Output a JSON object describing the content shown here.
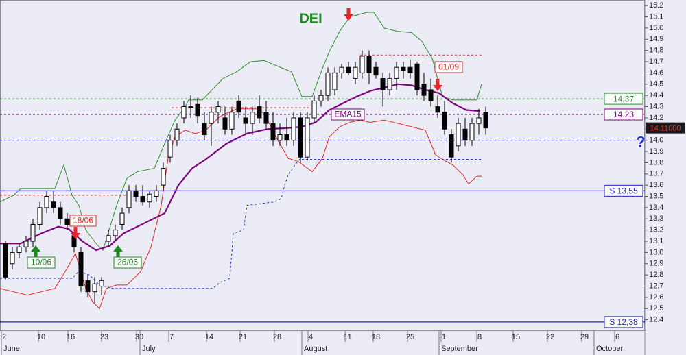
{
  "chart_data": {
    "type": "candlestick",
    "title": "DEI",
    "xlim": [
      -0.8,
      93.2
    ],
    "ylim": [
      12.3,
      15.25
    ],
    "yticks": [
      12.4,
      12.5,
      12.6,
      12.7,
      12.8,
      12.9,
      {
        "value": 13,
        "label": "13.0"
      },
      13.1,
      13.2,
      13.3,
      13.4,
      13.5,
      13.6,
      13.7,
      13.8,
      13.9,
      {
        "value": 14,
        "label": "14.0"
      },
      14.1,
      14.2,
      14.3,
      14.4,
      14.5,
      14.6,
      14.7,
      14.8,
      14.9,
      {
        "value": 15,
        "label": "15.0"
      },
      15.1,
      15.2
    ],
    "xticks": [
      {
        "value": -0.2,
        "label": "2"
      },
      {
        "value": 5.2,
        "label": "10"
      },
      {
        "value": 9.5,
        "label": "16"
      },
      {
        "value": 14.4,
        "label": "23"
      },
      {
        "value": 19.5,
        "label": "30"
      },
      {
        "value": 24.2,
        "label": "7"
      },
      {
        "value": 29.7,
        "label": "14"
      },
      {
        "value": 34.6,
        "label": "21"
      },
      {
        "value": 39.6,
        "label": "28"
      },
      {
        "value": 44.5,
        "label": "4"
      },
      {
        "value": 49.9,
        "label": "11"
      },
      {
        "value": 54.0,
        "label": "18"
      },
      {
        "value": 59.0,
        "label": "25"
      },
      {
        "value": 63.9,
        "label": "1"
      },
      {
        "value": 69.1,
        "label": "8"
      },
      {
        "value": 74.4,
        "label": "15"
      },
      {
        "value": 79.4,
        "label": "22"
      },
      {
        "value": 84.4,
        "label": "29"
      },
      {
        "value": 89.2,
        "label": "6"
      }
    ],
    "months": [
      {
        "value": -0.6,
        "label": "June"
      },
      {
        "value": 19.6,
        "label": "July"
      },
      {
        "value": 43.2,
        "label": "August"
      },
      {
        "value": 63.2,
        "label": "September"
      },
      {
        "value": 85.8,
        "label": "October"
      }
    ],
    "candles": {
      "x": [
        0,
        1,
        2,
        3,
        4,
        5,
        6,
        7,
        8,
        9,
        10,
        11,
        12,
        13,
        14,
        15,
        16,
        17,
        18,
        19,
        20,
        21,
        22,
        23,
        24,
        25,
        26,
        27,
        28,
        29,
        30,
        31,
        32,
        33,
        34,
        35,
        36,
        37,
        38,
        39,
        40,
        41,
        42,
        43,
        44,
        45,
        46,
        47,
        48,
        49,
        50,
        51,
        52,
        53,
        54,
        55,
        56,
        57,
        58,
        59,
        60,
        61,
        62,
        63,
        64,
        65,
        66,
        67,
        68,
        69,
        70
      ],
      "open": [
        13.08,
        12.9,
        13.0,
        13.05,
        13.1,
        13.25,
        13.4,
        13.45,
        13.4,
        13.3,
        13.15,
        13.0,
        12.75,
        12.65,
        12.7,
        13.1,
        13.15,
        13.25,
        13.4,
        13.55,
        13.5,
        13.45,
        13.5,
        13.6,
        13.85,
        14.0,
        14.2,
        14.3,
        14.32,
        14.15,
        14.15,
        14.25,
        14.2,
        14.1,
        14.35,
        14.2,
        14.15,
        14.3,
        14.25,
        14.15,
        14.0,
        14.05,
        14.0,
        14.2,
        13.85,
        14.2,
        14.35,
        14.4,
        14.45,
        14.6,
        14.65,
        14.55,
        14.6,
        14.75,
        14.65,
        14.55,
        14.45,
        14.55,
        14.65,
        14.65,
        14.68,
        14.5,
        14.45,
        14.3,
        14.25,
        14.05,
        13.95,
        14.1,
        14.0,
        14.15,
        14.25
      ],
      "high": [
        13.1,
        13.05,
        13.08,
        13.15,
        13.3,
        13.45,
        13.55,
        13.55,
        13.45,
        13.35,
        13.2,
        13.05,
        12.8,
        12.78,
        12.78,
        13.2,
        13.25,
        13.4,
        13.6,
        13.6,
        13.6,
        13.55,
        13.6,
        13.8,
        14.05,
        14.15,
        14.35,
        14.4,
        14.38,
        14.25,
        14.3,
        14.35,
        14.3,
        14.3,
        14.4,
        14.3,
        14.3,
        14.4,
        14.35,
        14.25,
        14.15,
        14.2,
        14.25,
        14.25,
        14.25,
        14.4,
        14.45,
        14.65,
        14.65,
        14.68,
        14.7,
        14.7,
        14.8,
        14.8,
        14.7,
        14.6,
        14.6,
        14.7,
        14.7,
        14.72,
        14.7,
        14.6,
        14.55,
        14.4,
        14.35,
        14.1,
        14.2,
        14.2,
        14.2,
        14.28,
        14.3
      ],
      "low": [
        12.76,
        12.85,
        12.95,
        13.0,
        13.05,
        13.2,
        13.35,
        13.35,
        13.25,
        13.2,
        13.0,
        12.65,
        12.6,
        12.55,
        12.62,
        13.05,
        13.1,
        13.2,
        13.35,
        13.45,
        13.42,
        13.4,
        13.45,
        13.55,
        13.8,
        13.95,
        14.15,
        14.2,
        14.15,
        14.0,
        13.95,
        14.15,
        14.05,
        14.05,
        14.2,
        14.05,
        14.05,
        14.15,
        14.1,
        13.95,
        13.95,
        13.95,
        13.95,
        13.8,
        13.82,
        14.15,
        14.3,
        14.35,
        14.4,
        14.55,
        14.58,
        14.5,
        14.55,
        14.5,
        14.55,
        14.3,
        14.4,
        14.45,
        14.55,
        14.55,
        14.4,
        14.35,
        14.3,
        14.2,
        14.05,
        13.8,
        13.9,
        13.95,
        13.95,
        14.05,
        14.05
      ],
      "close": [
        12.78,
        13.0,
        13.05,
        13.1,
        13.25,
        13.4,
        13.5,
        13.4,
        13.3,
        13.25,
        13.05,
        12.7,
        12.65,
        12.72,
        12.75,
        13.15,
        13.2,
        13.35,
        13.55,
        13.5,
        13.45,
        13.52,
        13.55,
        13.75,
        14.0,
        14.1,
        14.3,
        14.3,
        14.22,
        14.05,
        14.25,
        14.3,
        14.1,
        14.25,
        14.25,
        14.15,
        14.25,
        14.2,
        14.15,
        14.0,
        14.05,
        14.0,
        14.2,
        13.85,
        14.2,
        14.35,
        14.4,
        14.6,
        14.6,
        14.65,
        14.6,
        14.65,
        14.75,
        14.6,
        14.58,
        14.45,
        14.55,
        14.65,
        14.62,
        14.6,
        14.45,
        14.4,
        14.35,
        14.25,
        14.1,
        13.85,
        14.15,
        14.0,
        14.15,
        14.2,
        14.11
      ]
    },
    "lines": [
      {
        "name": "upper",
        "color": "#2e8b2e",
        "style": "solid",
        "x": [
          -0.8,
          1.2,
          2.2,
          7.2,
          8.5,
          9.7,
          10.7,
          11.7,
          13.2,
          14.2,
          16.2,
          17.7,
          19.2,
          21.7,
          23.2,
          24.7,
          26.2,
          26.7,
          28.7,
          31.7,
          33.7,
          35.7,
          37.7,
          41.7,
          43.2,
          44.7,
          46.2,
          47.2,
          48.7,
          50.2,
          52.7,
          53.7,
          55.2,
          57.2,
          59.2,
          60.7,
          62.2,
          63.7,
          65.2,
          68.7,
          69.4
        ],
        "values": [
          13.45,
          13.51,
          13.57,
          13.57,
          13.78,
          13.51,
          13.42,
          13.2,
          13.08,
          13.02,
          13.42,
          13.66,
          13.72,
          13.75,
          13.97,
          14.18,
          14.3,
          14.36,
          14.36,
          14.55,
          14.61,
          14.7,
          14.71,
          14.61,
          14.39,
          14.39,
          14.64,
          14.79,
          14.97,
          15.1,
          15.14,
          15.14,
          15.0,
          14.97,
          14.96,
          14.88,
          14.73,
          14.39,
          14.36,
          14.36,
          14.5
        ]
      },
      {
        "name": "lower",
        "color": "#e8262b",
        "style": "solid",
        "x": [
          -0.8,
          1.2,
          3.2,
          5.2,
          7.2,
          8.7,
          10.2,
          11.7,
          12.7,
          13.7,
          14.7,
          16.2,
          17.7,
          19.7,
          21.2,
          22.7,
          23.7,
          24.7,
          26.2,
          27.7,
          29.2,
          31.2,
          33.7,
          36.7,
          37.7,
          39.7,
          41.2,
          42.7,
          44.7,
          46.2,
          47.2,
          48.7,
          50.2,
          51.7,
          53.2,
          55.2,
          57.2,
          59.2,
          61.2,
          62.7,
          63.7,
          65.2,
          66.7,
          67.5,
          68.7,
          69.4
        ],
        "values": [
          12.68,
          12.65,
          12.62,
          12.65,
          12.68,
          12.83,
          12.99,
          12.68,
          12.56,
          12.5,
          12.68,
          12.71,
          12.71,
          12.83,
          13.05,
          13.42,
          13.84,
          14.03,
          14.09,
          14.06,
          14.09,
          14.21,
          14.28,
          14.28,
          14.24,
          14.0,
          13.84,
          13.81,
          13.72,
          13.84,
          14.03,
          14.12,
          14.16,
          14.18,
          14.16,
          14.18,
          14.15,
          14.12,
          14.09,
          13.87,
          13.83,
          13.78,
          13.69,
          13.61,
          13.68,
          13.68
        ]
      },
      {
        "name": "EMA15",
        "color": "#800080",
        "style": "thick",
        "x": [
          -0.8,
          2.2,
          5.2,
          7.7,
          9.2,
          11.2,
          13.2,
          15.2,
          17.2,
          20.2,
          23.2,
          25.2,
          27.2,
          29.2,
          32.2,
          35.2,
          38.2,
          41.2,
          43.2,
          45.2,
          47.2,
          49.2,
          51.2,
          53.2,
          55.2,
          57.2,
          59.2,
          61.2,
          63.2,
          65.2,
          67.2,
          69.2
        ],
        "values": [
          13.08,
          13.08,
          13.17,
          13.23,
          13.21,
          13.1,
          13.02,
          13.06,
          13.17,
          13.26,
          13.35,
          13.6,
          13.75,
          13.83,
          13.97,
          14.06,
          14.1,
          14.11,
          14.12,
          14.16,
          14.27,
          14.33,
          14.39,
          14.44,
          14.47,
          14.5,
          14.49,
          14.45,
          14.42,
          14.33,
          14.27,
          14.26
        ]
      },
      {
        "name": "stop",
        "color": "#2030d0",
        "style": "dashed",
        "x": [
          -0.8,
          4.2,
          9.7,
          10.7,
          12.2,
          13.7,
          15.7,
          30.2,
          31.2,
          32.7,
          33.2,
          34.7,
          35.2,
          39.2,
          40.2,
          40.7,
          41.2,
          42.2,
          43.0
        ],
        "values": [
          12.77,
          12.77,
          12.77,
          12.83,
          12.8,
          12.71,
          12.68,
          12.68,
          12.73,
          12.77,
          13.17,
          13.2,
          13.42,
          13.45,
          13.48,
          13.6,
          13.69,
          13.78,
          13.84
        ]
      }
    ],
    "levels": [
      {
        "value": 14.76,
        "color": "#e8262b",
        "style": "dashed",
        "xrange": [
          51.7,
          69.4
        ]
      },
      {
        "value": 14.37,
        "color": "#2e8b2e",
        "style": "dashed",
        "tagged": true
      },
      {
        "value": 14.29,
        "color": "#e8262b",
        "style": "dashed",
        "xrange": [
          24.2,
          44.2
        ]
      },
      {
        "value": 14.23,
        "color": "#800080",
        "style": "dashed",
        "tagged": true
      },
      {
        "value": 14.0,
        "color": "#2030d0",
        "style": "dashed",
        "label": "?"
      },
      {
        "value": 13.83,
        "color": "#2030d0",
        "style": "dashed",
        "xrange": [
          43.2,
          69.4
        ]
      },
      {
        "value": 13.55,
        "color": "#2020c0",
        "style": "solid",
        "label": "S 13.55"
      },
      {
        "value": 13.51,
        "color": "#e8262b",
        "style": "dashed",
        "xrange": [
          -0.8,
          17.7
        ]
      },
      {
        "value": 12.38,
        "color": "#2020c0",
        "style": "solid",
        "label": "S 12,38"
      }
    ],
    "last_price": {
      "value": 14.11,
      "label": "14.11000"
    },
    "annotations": [
      {
        "text": "18/06",
        "color": "#e8262b"
      },
      {
        "text": "01/09",
        "color": "#e8262b"
      },
      {
        "text": "10/06",
        "color": "#1a8a1a"
      },
      {
        "text": "26/06",
        "color": "#1a8a1a"
      },
      {
        "text": "EMA15",
        "color": "#800080"
      }
    ]
  }
}
